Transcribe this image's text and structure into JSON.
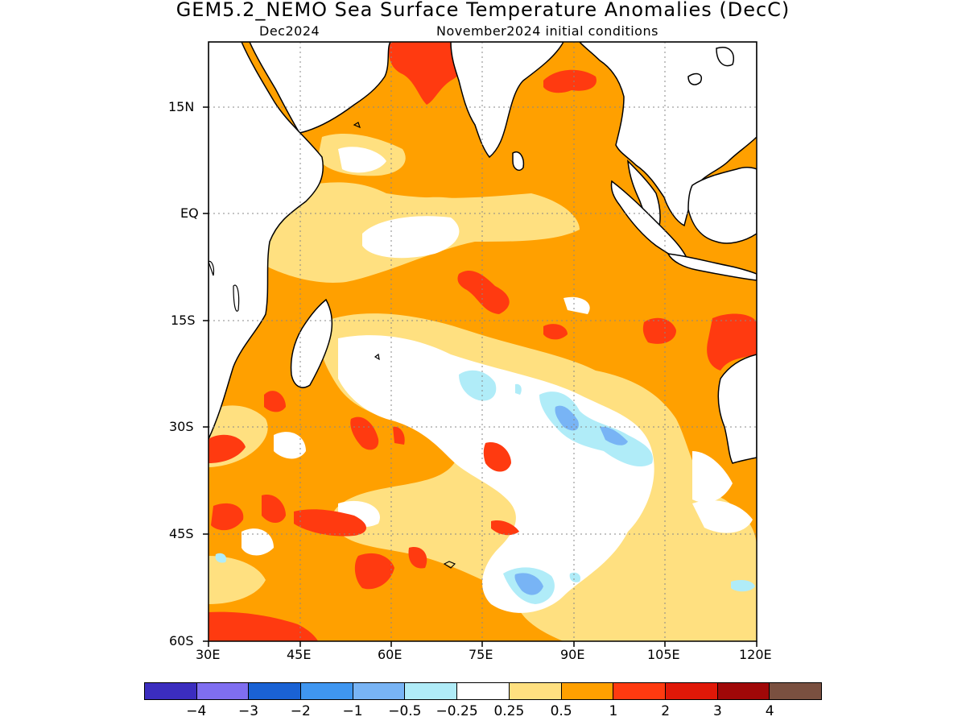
{
  "title": "GEM5.2_NEMO Sea Surface Temperature Anomalies (DecC)",
  "subtitle_left": "Dec2024",
  "subtitle_right": "November2024 initial conditions",
  "map": {
    "region": "Indian Ocean",
    "lon_range": [
      30,
      120
    ],
    "lat_range": [
      -60,
      24
    ],
    "gridlines": true,
    "y_ticks": [
      "15N",
      "EQ",
      "15S",
      "30S",
      "45S",
      "60S"
    ],
    "x_ticks": [
      "30E",
      "45E",
      "60E",
      "75E",
      "90E",
      "105E",
      "120E"
    ]
  },
  "colorbar": {
    "colors": [
      "#3b2dbf",
      "#7f6ef0",
      "#1a62d4",
      "#3f96f0",
      "#78b4f5",
      "#b0ecf8",
      "#ffffff",
      "#ffe080",
      "#ffa000",
      "#ff3a10",
      "#e01808",
      "#a00808",
      "#7a5040"
    ],
    "labels": [
      "−4",
      "−3",
      "−2",
      "−1",
      "−0.5",
      "−0.25",
      "0.25",
      "0.5",
      "1",
      "2",
      "3",
      "4"
    ]
  },
  "palette": {
    "land": "#ffffff",
    "light_yellow": "#ffe080",
    "orange": "#ffa000",
    "red": "#ff3a10",
    "cyan": "#b0ecf8",
    "blue": "#78b4f5"
  }
}
